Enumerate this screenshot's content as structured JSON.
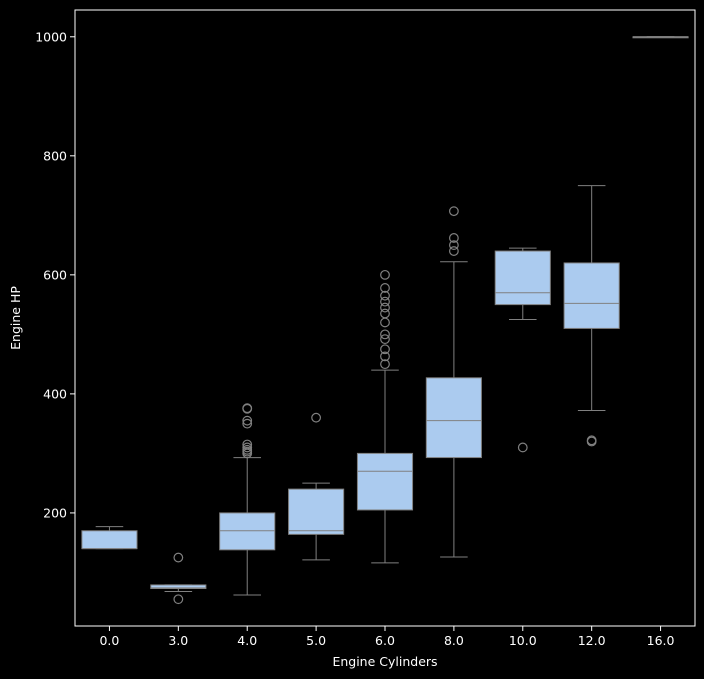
{
  "chart_data": {
    "type": "box",
    "title": "",
    "xlabel": "Engine Cylinders",
    "ylabel": "Engine HP",
    "ylim": [
      10,
      1045
    ],
    "yticks": [
      200,
      400,
      600,
      800,
      1000
    ],
    "grid": false,
    "colors": {
      "background": "#000000",
      "box_fill": "#abcbef",
      "line": "#808080",
      "axes": "#ffffff"
    },
    "categories": [
      "0.0",
      "3.0",
      "4.0",
      "5.0",
      "6.0",
      "8.0",
      "10.0",
      "12.0",
      "16.0"
    ],
    "boxes": [
      {
        "category": "0.0",
        "whislo": 140,
        "q1": 140,
        "med": 140,
        "q3": 170,
        "whishi": 177,
        "fliers": []
      },
      {
        "category": "3.0",
        "whislo": 68,
        "q1": 73,
        "med": 74,
        "q3": 79,
        "whishi": 79,
        "fliers": [
          125,
          55
        ]
      },
      {
        "category": "4.0",
        "whislo": 62,
        "q1": 138,
        "med": 170,
        "q3": 200,
        "whishi": 293,
        "fliers": [
          300,
          303,
          306,
          310,
          315,
          350,
          355,
          375,
          376
        ]
      },
      {
        "category": "5.0",
        "whislo": 121,
        "q1": 164,
        "med": 170,
        "q3": 240,
        "whishi": 250,
        "fliers": [
          360
        ]
      },
      {
        "category": "6.0",
        "whislo": 116,
        "q1": 205,
        "med": 270,
        "q3": 300,
        "whishi": 440,
        "fliers": [
          450,
          463,
          475,
          492,
          500,
          520,
          535,
          545,
          555,
          565,
          578,
          600
        ]
      },
      {
        "category": "8.0",
        "whislo": 126,
        "q1": 293,
        "med": 355,
        "q3": 427,
        "whishi": 622,
        "fliers": [
          640,
          650,
          662,
          707
        ]
      },
      {
        "category": "10.0",
        "whislo": 525,
        "q1": 550,
        "med": 570,
        "q3": 640,
        "whishi": 645,
        "fliers": [
          310
        ]
      },
      {
        "category": "12.0",
        "whislo": 372,
        "q1": 510,
        "med": 552,
        "q3": 620,
        "whishi": 750,
        "fliers": [
          320,
          322
        ]
      },
      {
        "category": "16.0",
        "whislo": 1000,
        "q1": 1000,
        "med": 1000,
        "q3": 1000,
        "whishi": 1000,
        "fliers": []
      }
    ]
  }
}
